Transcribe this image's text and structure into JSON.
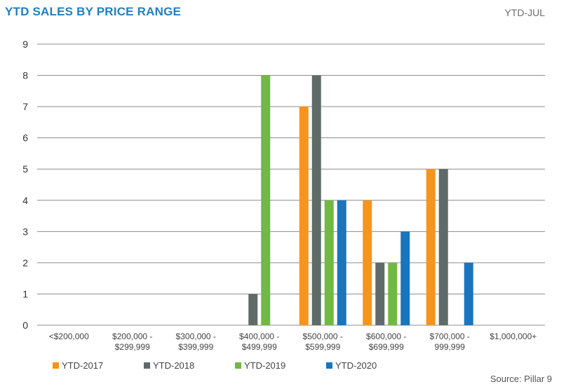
{
  "header": {
    "title": "YTD SALES BY PRICE RANGE",
    "period": "YTD-JUL"
  },
  "source": "Source: Pillar 9",
  "colors": {
    "YTD-2017": "#f7941d",
    "YTD-2018": "#5f6b68",
    "YTD-2019": "#72b844",
    "YTD-2020": "#1a75bc",
    "grid": "#8c8c8c"
  },
  "chart_data": {
    "type": "bar",
    "title": "YTD SALES BY PRICE RANGE",
    "xlabel": "",
    "ylabel": "",
    "ylim": [
      0,
      9
    ],
    "yticks": [
      "0",
      "1",
      "2",
      "3",
      "4",
      "5",
      "6",
      "7",
      "8",
      "9"
    ],
    "grid": true,
    "legend_position": "bottom",
    "categories": [
      [
        "<$200,000"
      ],
      [
        "$200,000 -",
        "$299,999"
      ],
      [
        "$300,000 -",
        "$399,999"
      ],
      [
        "$400,000 -",
        "$499,999"
      ],
      [
        "$500,000 -",
        "$599,999"
      ],
      [
        "$600,000 -",
        "$699,999"
      ],
      [
        "$700,000 -",
        "999,999"
      ],
      [
        "$1,000,000+"
      ]
    ],
    "series": [
      {
        "name": "YTD-2017",
        "values": [
          0,
          0,
          0,
          0,
          7,
          4,
          5,
          0
        ]
      },
      {
        "name": "YTD-2018",
        "values": [
          0,
          0,
          0,
          1,
          8,
          2,
          5,
          0
        ]
      },
      {
        "name": "YTD-2019",
        "values": [
          0,
          0,
          0,
          8,
          4,
          2,
          0,
          0
        ]
      },
      {
        "name": "YTD-2020",
        "values": [
          0,
          0,
          0,
          0,
          4,
          3,
          2,
          0
        ]
      }
    ]
  }
}
